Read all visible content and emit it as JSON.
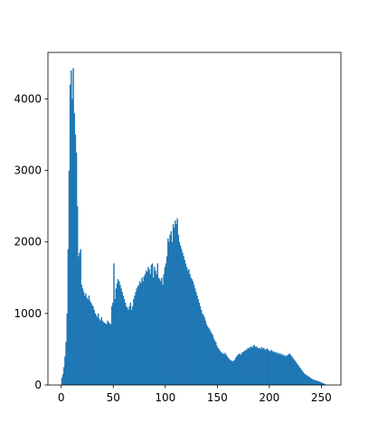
{
  "chart_data": {
    "type": "histogram",
    "color": "#1f77b4",
    "bins": [
      0,
      1,
      2,
      3,
      4,
      5,
      6,
      7,
      8,
      9,
      10,
      11,
      12,
      13,
      14,
      15,
      16,
      17,
      18,
      19,
      20,
      21,
      22,
      23,
      24,
      25,
      26,
      27,
      28,
      29,
      30,
      31,
      32,
      33,
      34,
      35,
      36,
      37,
      38,
      39,
      40,
      41,
      42,
      43,
      44,
      45,
      46,
      47,
      48,
      49,
      50,
      51,
      52,
      53,
      54,
      55,
      56,
      57,
      58,
      59,
      60,
      61,
      62,
      63,
      64,
      65,
      66,
      67,
      68,
      69,
      70,
      71,
      72,
      73,
      74,
      75,
      76,
      77,
      78,
      79,
      80,
      81,
      82,
      83,
      84,
      85,
      86,
      87,
      88,
      89,
      90,
      91,
      92,
      93,
      94,
      95,
      96,
      97,
      98,
      99,
      100,
      101,
      102,
      103,
      104,
      105,
      106,
      107,
      108,
      109,
      110,
      111,
      112,
      113,
      114,
      115,
      116,
      117,
      118,
      119,
      120,
      121,
      122,
      123,
      124,
      125,
      126,
      127,
      128,
      129,
      130,
      131,
      132,
      133,
      134,
      135,
      136,
      137,
      138,
      139,
      140,
      141,
      142,
      143,
      144,
      145,
      146,
      147,
      148,
      149,
      150,
      151,
      152,
      153,
      154,
      155,
      156,
      157,
      158,
      159,
      160,
      161,
      162,
      163,
      164,
      165,
      166,
      167,
      168,
      169,
      170,
      171,
      172,
      173,
      174,
      175,
      176,
      177,
      178,
      179,
      180,
      181,
      182,
      183,
      184,
      185,
      186,
      187,
      188,
      189,
      190,
      191,
      192,
      193,
      194,
      195,
      196,
      197,
      198,
      199,
      200,
      201,
      202,
      203,
      204,
      205,
      206,
      207,
      208,
      209,
      210,
      211,
      212,
      213,
      214,
      215,
      216,
      217,
      218,
      219,
      220,
      221,
      222,
      223,
      224,
      225,
      226,
      227,
      228,
      229,
      230,
      231,
      232,
      233,
      234,
      235,
      236,
      237,
      238,
      239,
      240,
      241,
      242,
      243,
      244,
      245,
      246,
      247,
      248,
      249,
      250,
      251,
      252,
      253,
      254,
      255,
      256
    ],
    "values": [
      100,
      150,
      250,
      400,
      600,
      1000,
      1900,
      3000,
      4200,
      4400,
      4000,
      4430,
      3800,
      3500,
      3250,
      2500,
      1800,
      1850,
      1900,
      1400,
      1350,
      1300,
      1250,
      1280,
      1220,
      1200,
      1250,
      1180,
      1150,
      1120,
      1100,
      1050,
      1000,
      980,
      950,
      1000,
      920,
      900,
      950,
      900,
      880,
      870,
      860,
      850,
      900,
      880,
      860,
      850,
      1100,
      1150,
      1700,
      1200,
      1350,
      1420,
      1480,
      1450,
      1400,
      1350,
      1300,
      1250,
      1200,
      1150,
      1100,
      1080,
      1050,
      1100,
      1150,
      1050,
      1100,
      1200,
      1250,
      1300,
      1350,
      1380,
      1400,
      1450,
      1420,
      1500,
      1450,
      1520,
      1550,
      1600,
      1580,
      1650,
      1620,
      1550,
      1680,
      1700,
      1500,
      1650,
      1600,
      1550,
      1700,
      1500,
      1480,
      1450,
      1500,
      1400,
      1550,
      1650,
      1700,
      1800,
      2050,
      2000,
      2100,
      2150,
      2000,
      2250,
      2200,
      2300,
      2250,
      2330,
      2100,
      2000,
      1950,
      1900,
      1850,
      1800,
      1750,
      1700,
      1650,
      1600,
      1620,
      1550,
      1500,
      1480,
      1450,
      1400,
      1350,
      1300,
      1250,
      1200,
      1150,
      1100,
      1050,
      1000,
      980,
      950,
      900,
      850,
      820,
      800,
      780,
      750,
      720,
      700,
      650,
      620,
      600,
      550,
      520,
      500,
      480,
      460,
      450,
      440,
      430,
      450,
      420,
      400,
      380,
      360,
      350,
      340,
      330,
      340,
      350,
      380,
      400,
      420,
      430,
      440,
      420,
      450,
      460,
      470,
      480,
      490,
      500,
      520,
      510,
      530,
      540,
      520,
      550,
      560,
      530,
      540,
      520,
      510,
      520,
      500,
      530,
      510,
      520,
      500,
      490,
      510,
      500,
      480,
      470,
      490,
      480,
      460,
      470,
      450,
      460,
      440,
      450,
      430,
      440,
      420,
      430,
      410,
      420,
      400,
      410,
      420,
      430,
      440,
      420,
      400,
      380,
      360,
      340,
      320,
      300,
      280,
      260,
      240,
      220,
      200,
      180,
      160,
      150,
      140,
      130,
      120,
      110,
      100,
      90,
      80,
      75,
      70,
      65,
      60,
      55,
      50,
      45,
      40,
      30,
      25,
      20,
      10,
      5,
      0
    ],
    "xlim": [
      -12.8,
      268.8
    ],
    "xticks": [
      0,
      50,
      100,
      150,
      200,
      250
    ],
    "ylim": [
      0,
      4650
    ],
    "yticks": [
      0,
      1000,
      2000,
      3000,
      4000
    ]
  }
}
